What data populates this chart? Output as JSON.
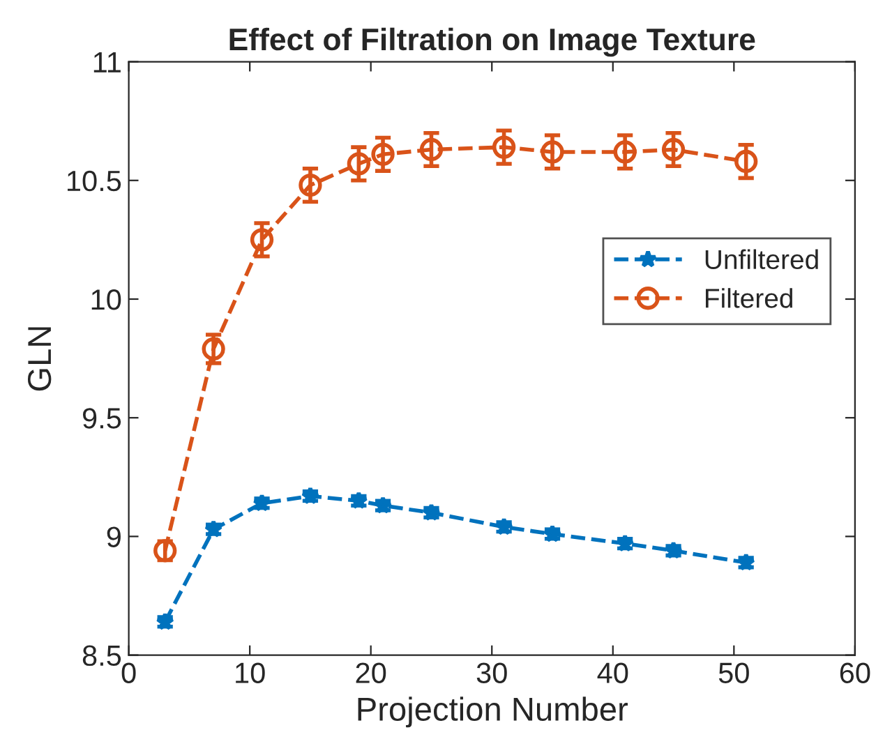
{
  "chart_data": {
    "type": "line",
    "title": "Effect of Filtration on Image Texture",
    "xlabel": "Projection Number",
    "ylabel": "GLN",
    "x": [
      3,
      7,
      11,
      15,
      19,
      21,
      25,
      31,
      35,
      41,
      45,
      51
    ],
    "series": [
      {
        "name": "Unfiltered",
        "color": "#0072bd",
        "marker": "star",
        "values": [
          8.64,
          9.03,
          9.14,
          9.17,
          9.15,
          9.13,
          9.1,
          9.04,
          9.01,
          8.97,
          8.94,
          8.89
        ],
        "errors": [
          0.02,
          0.02,
          0.02,
          0.02,
          0.02,
          0.02,
          0.02,
          0.02,
          0.02,
          0.02,
          0.02,
          0.02
        ]
      },
      {
        "name": "Filtered",
        "color": "#d95319",
        "marker": "circle",
        "values": [
          8.94,
          9.79,
          10.25,
          10.48,
          10.57,
          10.61,
          10.63,
          10.64,
          10.62,
          10.62,
          10.63,
          10.58
        ],
        "errors": [
          0.04,
          0.06,
          0.07,
          0.07,
          0.07,
          0.07,
          0.07,
          0.07,
          0.07,
          0.07,
          0.07,
          0.07
        ]
      }
    ],
    "line_style": "dashed",
    "xlim": [
      0,
      60
    ],
    "xticks": [
      0,
      10,
      20,
      30,
      40,
      50,
      60
    ],
    "ylim": [
      8.5,
      11
    ],
    "yticks": [
      8.5,
      9,
      9.5,
      10,
      10.5,
      11
    ],
    "grid": false,
    "legend": "right"
  }
}
